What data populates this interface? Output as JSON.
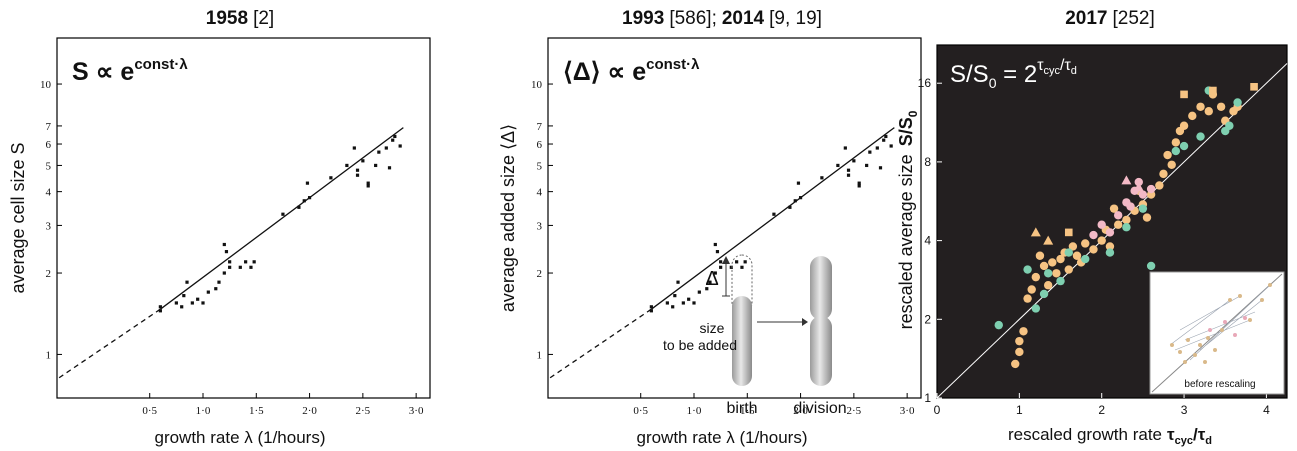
{
  "chart_data": [
    {
      "type": "scatter",
      "title": "1958",
      "title_ref": "[2]",
      "formula": [
        "S ∝ e",
        "const·λ"
      ],
      "xlabel": "growth rate λ (1/hours)",
      "ylabel": "average cell size S",
      "xlim": [
        -0.37,
        3.13
      ],
      "ylim": [
        0.69,
        14.8
      ],
      "log": true,
      "xticks": [
        {
          "value": 0.5,
          "label": "0·5"
        },
        {
          "value": 1.0,
          "label": "1·0"
        },
        {
          "value": 1.5,
          "label": "1·5"
        },
        {
          "value": 2.0,
          "label": "2·0"
        },
        {
          "value": 2.5,
          "label": "2·5"
        },
        {
          "value": 3.0,
          "label": "3·0"
        }
      ],
      "yticks": [
        1,
        2,
        3,
        4,
        5,
        6,
        7,
        10
      ],
      "series": [
        {
          "color": "#111111",
          "marker": "square",
          "x": [
            0.6,
            0.6,
            0.75,
            0.8,
            0.82,
            0.85,
            0.9,
            0.95,
            1.0,
            1.05,
            1.12,
            1.15,
            1.2,
            1.2,
            1.22,
            1.25,
            1.25,
            1.35,
            1.4,
            1.45,
            1.48,
            1.75,
            1.9,
            1.95,
            1.98,
            2.0,
            2.2,
            2.35,
            2.42,
            2.45,
            2.45,
            2.5,
            2.55,
            2.55,
            2.62,
            2.65,
            2.72,
            2.75,
            2.78,
            2.8,
            2.85
          ],
          "values": [
            1.45,
            1.5,
            1.55,
            1.5,
            1.65,
            1.85,
            1.55,
            1.6,
            1.55,
            1.7,
            1.75,
            1.85,
            2.0,
            2.55,
            2.4,
            2.1,
            2.2,
            2.1,
            2.2,
            2.1,
            2.2,
            3.3,
            3.5,
            3.7,
            4.3,
            3.8,
            4.5,
            5.0,
            5.8,
            4.8,
            4.6,
            5.2,
            4.2,
            4.3,
            5.0,
            5.6,
            5.8,
            4.9,
            6.2,
            6.4,
            5.9
          ]
        }
      ],
      "lines": [
        {
          "x": [
            -0.35,
            0.6
          ],
          "values": [
            0.82,
            1.47
          ],
          "color": "#111111",
          "dash": true
        },
        {
          "x": [
            0.6,
            2.88
          ],
          "values": [
            1.47,
            6.9
          ],
          "color": "#111111",
          "dash": false
        }
      ]
    },
    {
      "type": "scatter",
      "title_parts": [
        "1993",
        "[586];",
        "2014",
        "[9, 19]"
      ],
      "formula": [
        "⟨Δ⟩ ∝ e",
        "const·λ"
      ],
      "xlabel": "growth rate λ (1/hours)",
      "ylabel": "average added size ⟨Δ⟩",
      "inset": {
        "delta": "Δ",
        "size": "size",
        "to_be_added": "to be added",
        "birth": "birth",
        "division": "division"
      },
      "xlim": [
        -0.37,
        3.13
      ],
      "ylim": [
        0.69,
        14.8
      ],
      "log": true,
      "xticks": [
        {
          "value": 0.5,
          "label": "0·5"
        },
        {
          "value": 1.0,
          "label": "1·0"
        },
        {
          "value": 1.5,
          "label": "1·5"
        },
        {
          "value": 2.0,
          "label": "2·0"
        },
        {
          "value": 2.5,
          "label": "2·5"
        },
        {
          "value": 3.0,
          "label": "3·0"
        }
      ],
      "yticks": [
        1,
        2,
        3,
        4,
        5,
        6,
        7,
        10
      ],
      "series": [
        {
          "color": "#111111",
          "marker": "square",
          "x": [
            0.6,
            0.6,
            0.75,
            0.8,
            0.82,
            0.85,
            0.9,
            0.95,
            1.0,
            1.05,
            1.12,
            1.15,
            1.2,
            1.2,
            1.22,
            1.25,
            1.25,
            1.35,
            1.4,
            1.45,
            1.48,
            1.75,
            1.9,
            1.95,
            1.98,
            2.0,
            2.2,
            2.35,
            2.42,
            2.45,
            2.45,
            2.5,
            2.55,
            2.55,
            2.62,
            2.65,
            2.72,
            2.75,
            2.78,
            2.8,
            2.85
          ],
          "values": [
            1.45,
            1.5,
            1.55,
            1.5,
            1.65,
            1.85,
            1.55,
            1.6,
            1.55,
            1.7,
            1.75,
            1.85,
            2.0,
            2.55,
            2.4,
            2.1,
            2.2,
            2.1,
            2.2,
            2.1,
            2.2,
            3.3,
            3.5,
            3.7,
            4.3,
            3.8,
            4.5,
            5.0,
            5.8,
            4.8,
            4.6,
            5.2,
            4.2,
            4.3,
            5.0,
            5.6,
            5.8,
            4.9,
            6.2,
            6.4,
            5.9
          ]
        }
      ],
      "lines": [
        {
          "x": [
            -0.35,
            0.6
          ],
          "values": [
            0.82,
            1.47
          ],
          "color": "#111111",
          "dash": true
        },
        {
          "x": [
            0.6,
            2.88
          ],
          "values": [
            1.47,
            6.9
          ],
          "color": "#111111",
          "dash": false
        }
      ]
    },
    {
      "type": "scatter",
      "title": "2017",
      "title_ref": "[252]",
      "formula": [
        "S/S",
        "0",
        " = 2",
        "τ",
        "cyc",
        "/τ",
        "d"
      ],
      "xlabel": [
        "rescaled growth rate",
        "τ",
        "cyc",
        "/τ",
        "d"
      ],
      "ylabel": [
        "rescaled average size",
        "S/S",
        "0"
      ],
      "inset_label": "before rescaling",
      "background": "#231f20",
      "xlim": [
        0,
        4.25
      ],
      "ylim": [
        1,
        22.4
      ],
      "log": true,
      "xticks": [
        0,
        1,
        2,
        3,
        4
      ],
      "yticks": [
        1,
        2,
        4,
        8,
        16
      ],
      "series": [
        {
          "color": "#f6c383",
          "marker": "circle",
          "x": [
            0.95,
            1.0,
            1.0,
            1.05,
            1.1,
            1.15,
            1.2,
            1.3,
            1.35,
            1.4,
            1.45,
            1.5,
            1.55,
            1.6,
            1.65,
            1.7,
            1.8,
            1.9,
            2.0,
            2.05,
            2.1,
            2.2,
            2.3,
            2.4,
            2.5,
            2.55,
            2.6,
            2.7,
            2.75,
            2.8,
            2.85,
            2.9,
            2.95,
            3.0,
            3.1,
            3.2,
            3.3,
            3.35,
            3.45,
            3.5,
            3.6,
            3.65,
            1.25,
            1.75,
            2.15,
            2.45
          ],
          "values": [
            1.35,
            1.5,
            1.65,
            1.8,
            2.4,
            2.6,
            2.9,
            3.2,
            2.7,
            3.3,
            3.0,
            3.4,
            3.6,
            3.1,
            3.8,
            3.5,
            3.9,
            3.7,
            4.0,
            4.4,
            3.8,
            4.6,
            4.8,
            5.2,
            5.5,
            4.9,
            6.0,
            6.5,
            7.2,
            8.5,
            7.8,
            9.5,
            10.5,
            11,
            12,
            13,
            12.5,
            14.5,
            13,
            11.5,
            12.5,
            13,
            3.5,
            3.3,
            5.3,
            6.2
          ]
        },
        {
          "color": "#7ecfb0",
          "marker": "circle",
          "x": [
            0.75,
            1.1,
            1.2,
            1.3,
            1.35,
            1.5,
            1.6,
            1.8,
            2.1,
            2.3,
            2.9,
            3.0,
            3.2,
            3.3,
            3.5,
            3.55,
            3.65,
            2.6,
            2.5
          ],
          "values": [
            1.9,
            3.1,
            2.2,
            2.5,
            3.0,
            2.8,
            3.6,
            3.4,
            3.6,
            4.5,
            8.8,
            9.2,
            10,
            15,
            10.5,
            11,
            13.5,
            3.2,
            5.3
          ]
        },
        {
          "color": "#f3b9c6",
          "marker": "circle",
          "x": [
            1.9,
            2.0,
            2.2,
            2.3,
            2.4,
            2.5,
            2.6,
            2.35,
            2.45,
            2.1
          ],
          "values": [
            4.2,
            4.6,
            5.0,
            5.6,
            6.2,
            6.0,
            6.3,
            5.4,
            6.7,
            4.3
          ]
        },
        {
          "color": "#f6c383",
          "marker": "square",
          "x": [
            3.0,
            3.35,
            3.85,
            1.6
          ],
          "values": [
            14.5,
            15,
            15.5,
            4.3
          ]
        },
        {
          "color": "#f6c383",
          "marker": "triangle",
          "x": [
            1.2,
            1.35
          ],
          "values": [
            4.3,
            4.0
          ]
        },
        {
          "color": "#f3b9c6",
          "marker": "triangle",
          "x": [
            2.3,
            2.45
          ],
          "values": [
            6.8,
            6.4
          ]
        }
      ],
      "lines": [
        {
          "x": [
            0,
            4.25
          ],
          "values": [
            1,
            19.03
          ],
          "color": "#ffffff",
          "dash": false
        }
      ]
    }
  ]
}
